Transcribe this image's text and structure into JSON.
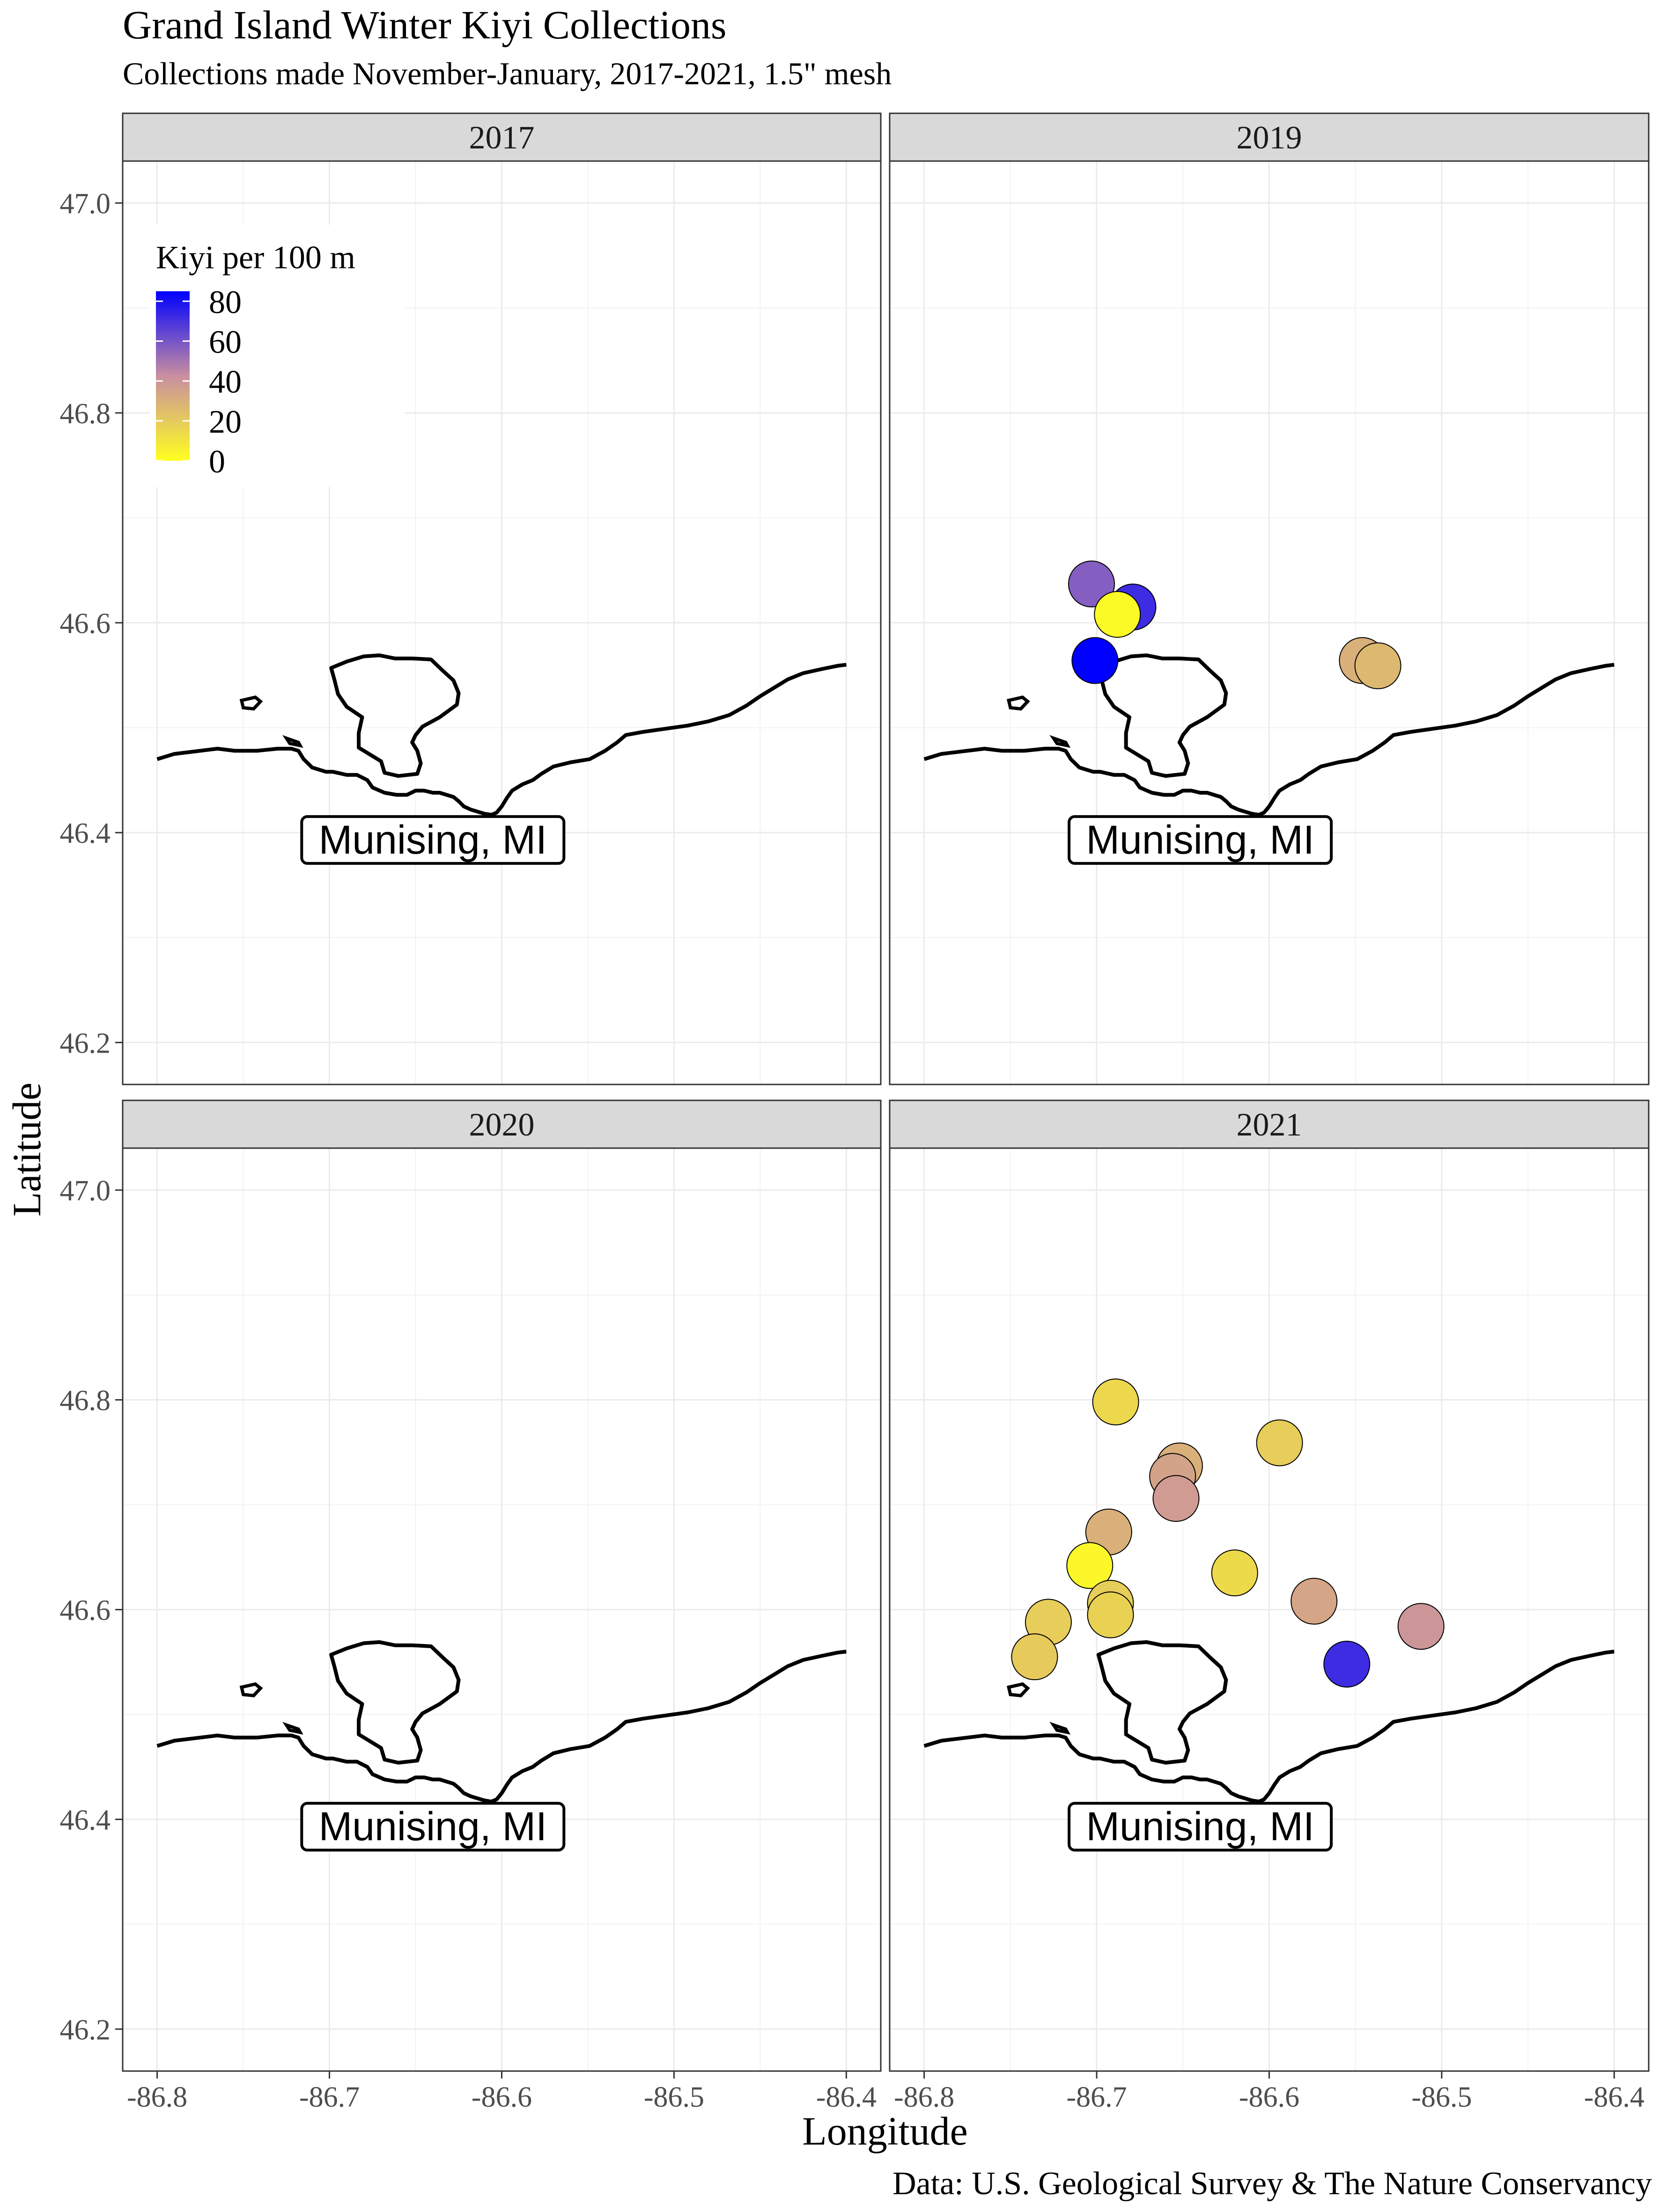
{
  "chart_data": {
    "type": "scatter",
    "title": "Grand Island Winter Kiyi Collections",
    "subtitle": "Collections made November-January, 2017-2021, 1.5\" mesh",
    "caption": "Data: U.S. Geological Survey & The Nature Conservancy",
    "xlabel": "Longitude",
    "ylabel": "Latitude",
    "xlim": [
      -86.82,
      -86.38
    ],
    "ylim": [
      46.16,
      47.04
    ],
    "x_ticks": [
      -86.8,
      -86.7,
      -86.6,
      -86.5,
      -86.4
    ],
    "y_ticks": [
      46.2,
      46.4,
      46.6,
      46.8,
      47.0
    ],
    "x_tick_labels": [
      "-86.8",
      "-86.7",
      "-86.6",
      "-86.5",
      "-86.4"
    ],
    "y_tick_labels": [
      "46.2",
      "46.4",
      "46.6",
      "46.8",
      "47.0"
    ],
    "grid": true,
    "legend": {
      "title": "Kiyi per 100 m",
      "position": "top-left inside first panel",
      "range": [
        0,
        85
      ],
      "labels": [
        "80",
        "60",
        "40",
        "20",
        "0"
      ],
      "breaks": [
        80,
        60,
        40,
        20,
        0
      ],
      "low_color": "#FFFF20",
      "mid_color": "#C98FA0",
      "high_color": "#0000FF"
    },
    "map_label": "Munising, MI",
    "map_label_position": [
      -86.64,
      46.393
    ],
    "panels": [
      {
        "label": "2017",
        "points": []
      },
      {
        "label": "2019",
        "points": [
          {
            "x": -86.703,
            "y": 46.637,
            "value": 57
          },
          {
            "x": -86.679,
            "y": 46.615,
            "value": 72
          },
          {
            "x": -86.688,
            "y": 46.608,
            "value": 2
          },
          {
            "x": -86.701,
            "y": 46.564,
            "value": 85
          },
          {
            "x": -86.546,
            "y": 46.564,
            "value": 30
          },
          {
            "x": -86.537,
            "y": 46.559,
            "value": 27
          }
        ]
      },
      {
        "label": "2020",
        "points": []
      },
      {
        "label": "2021",
        "points": [
          {
            "x": -86.689,
            "y": 46.798,
            "value": 15
          },
          {
            "x": -86.594,
            "y": 46.759,
            "value": 19
          },
          {
            "x": -86.652,
            "y": 46.737,
            "value": 30
          },
          {
            "x": -86.656,
            "y": 46.727,
            "value": 35
          },
          {
            "x": -86.654,
            "y": 46.706,
            "value": 38
          },
          {
            "x": -86.693,
            "y": 46.674,
            "value": 30
          },
          {
            "x": -86.704,
            "y": 46.642,
            "value": 3
          },
          {
            "x": -86.62,
            "y": 46.635,
            "value": 14
          },
          {
            "x": -86.574,
            "y": 46.608,
            "value": 34
          },
          {
            "x": -86.692,
            "y": 46.606,
            "value": 19
          },
          {
            "x": -86.692,
            "y": 46.595,
            "value": 17
          },
          {
            "x": -86.728,
            "y": 46.588,
            "value": 19
          },
          {
            "x": -86.512,
            "y": 46.584,
            "value": 40
          },
          {
            "x": -86.736,
            "y": 46.555,
            "value": 20
          },
          {
            "x": -86.555,
            "y": 46.548,
            "value": 72
          }
        ]
      }
    ],
    "coastline_mainland": [
      [
        -86.8,
        46.47
      ],
      [
        -86.79,
        46.475
      ],
      [
        -86.775,
        46.478
      ],
      [
        -86.765,
        46.48
      ],
      [
        -86.755,
        46.478
      ],
      [
        -86.742,
        46.478
      ],
      [
        -86.73,
        46.48
      ],
      [
        -86.722,
        46.48
      ],
      [
        -86.718,
        46.478
      ],
      [
        -86.715,
        46.47
      ],
      [
        -86.71,
        46.462
      ],
      [
        -86.702,
        46.458
      ],
      [
        -86.698,
        46.458
      ],
      [
        -86.69,
        46.455
      ],
      [
        -86.684,
        46.455
      ],
      [
        -86.678,
        46.45
      ],
      [
        -86.675,
        46.443
      ],
      [
        -86.668,
        46.438
      ],
      [
        -86.661,
        46.436
      ],
      [
        -86.655,
        46.436
      ],
      [
        -86.65,
        46.44
      ],
      [
        -86.645,
        46.44
      ],
      [
        -86.64,
        46.438
      ],
      [
        -86.636,
        46.438
      ],
      [
        -86.632,
        46.436
      ],
      [
        -86.628,
        46.434
      ],
      [
        -86.625,
        46.43
      ],
      [
        -86.622,
        46.425
      ],
      [
        -86.618,
        46.422
      ],
      [
        -86.614,
        46.42
      ],
      [
        -86.61,
        46.418
      ],
      [
        -86.606,
        46.417
      ],
      [
        -86.603,
        46.419
      ],
      [
        -86.6,
        46.425
      ],
      [
        -86.597,
        46.433
      ],
      [
        -86.594,
        46.44
      ],
      [
        -86.588,
        46.446
      ],
      [
        -86.582,
        46.45
      ],
      [
        -86.577,
        46.456
      ],
      [
        -86.57,
        46.463
      ],
      [
        -86.56,
        46.467
      ],
      [
        -86.549,
        46.47
      ],
      [
        -86.54,
        46.478
      ],
      [
        -86.533,
        46.486
      ],
      [
        -86.528,
        46.493
      ],
      [
        -86.518,
        46.496
      ],
      [
        -86.505,
        46.499
      ],
      [
        -86.492,
        46.502
      ],
      [
        -86.48,
        46.506
      ],
      [
        -86.468,
        46.512
      ],
      [
        -86.458,
        46.521
      ],
      [
        -86.45,
        46.53
      ],
      [
        -86.442,
        46.538
      ],
      [
        -86.434,
        46.546
      ],
      [
        -86.425,
        46.552
      ],
      [
        -86.414,
        46.556
      ],
      [
        -86.405,
        46.559
      ],
      [
        -86.4,
        46.56
      ]
    ],
    "coastline_grand_island": [
      [
        -86.69,
        46.563
      ],
      [
        -86.68,
        46.568
      ],
      [
        -86.671,
        46.569
      ],
      [
        -86.662,
        46.566
      ],
      [
        -86.652,
        46.566
      ],
      [
        -86.641,
        46.565
      ],
      [
        -86.634,
        46.554
      ],
      [
        -86.628,
        46.545
      ],
      [
        -86.625,
        46.533
      ],
      [
        -86.626,
        46.522
      ],
      [
        -86.636,
        46.51
      ],
      [
        -86.646,
        46.501
      ],
      [
        -86.65,
        46.493
      ],
      [
        -86.652,
        46.486
      ],
      [
        -86.649,
        46.478
      ],
      [
        -86.647,
        46.466
      ],
      [
        -86.649,
        46.456
      ],
      [
        -86.66,
        46.454
      ],
      [
        -86.668,
        46.457
      ],
      [
        -86.67,
        46.468
      ],
      [
        -86.676,
        46.474
      ],
      [
        -86.683,
        46.481
      ],
      [
        -86.683,
        46.495
      ],
      [
        -86.681,
        46.51
      ],
      [
        -86.69,
        46.52
      ],
      [
        -86.695,
        46.532
      ],
      [
        -86.697,
        46.545
      ],
      [
        -86.699,
        46.557
      ],
      [
        -86.69,
        46.563
      ]
    ],
    "coastline_islet_1": [
      [
        -86.751,
        46.526
      ],
      [
        -86.743,
        46.529
      ],
      [
        -86.74,
        46.525
      ],
      [
        -86.744,
        46.518
      ],
      [
        -86.75,
        46.519
      ],
      [
        -86.751,
        46.526
      ]
    ],
    "coastline_islet_2": [
      [
        -86.725,
        46.49
      ],
      [
        -86.718,
        46.486
      ],
      [
        -86.717,
        46.483
      ],
      [
        -86.723,
        46.485
      ],
      [
        -86.725,
        46.49
      ]
    ]
  }
}
